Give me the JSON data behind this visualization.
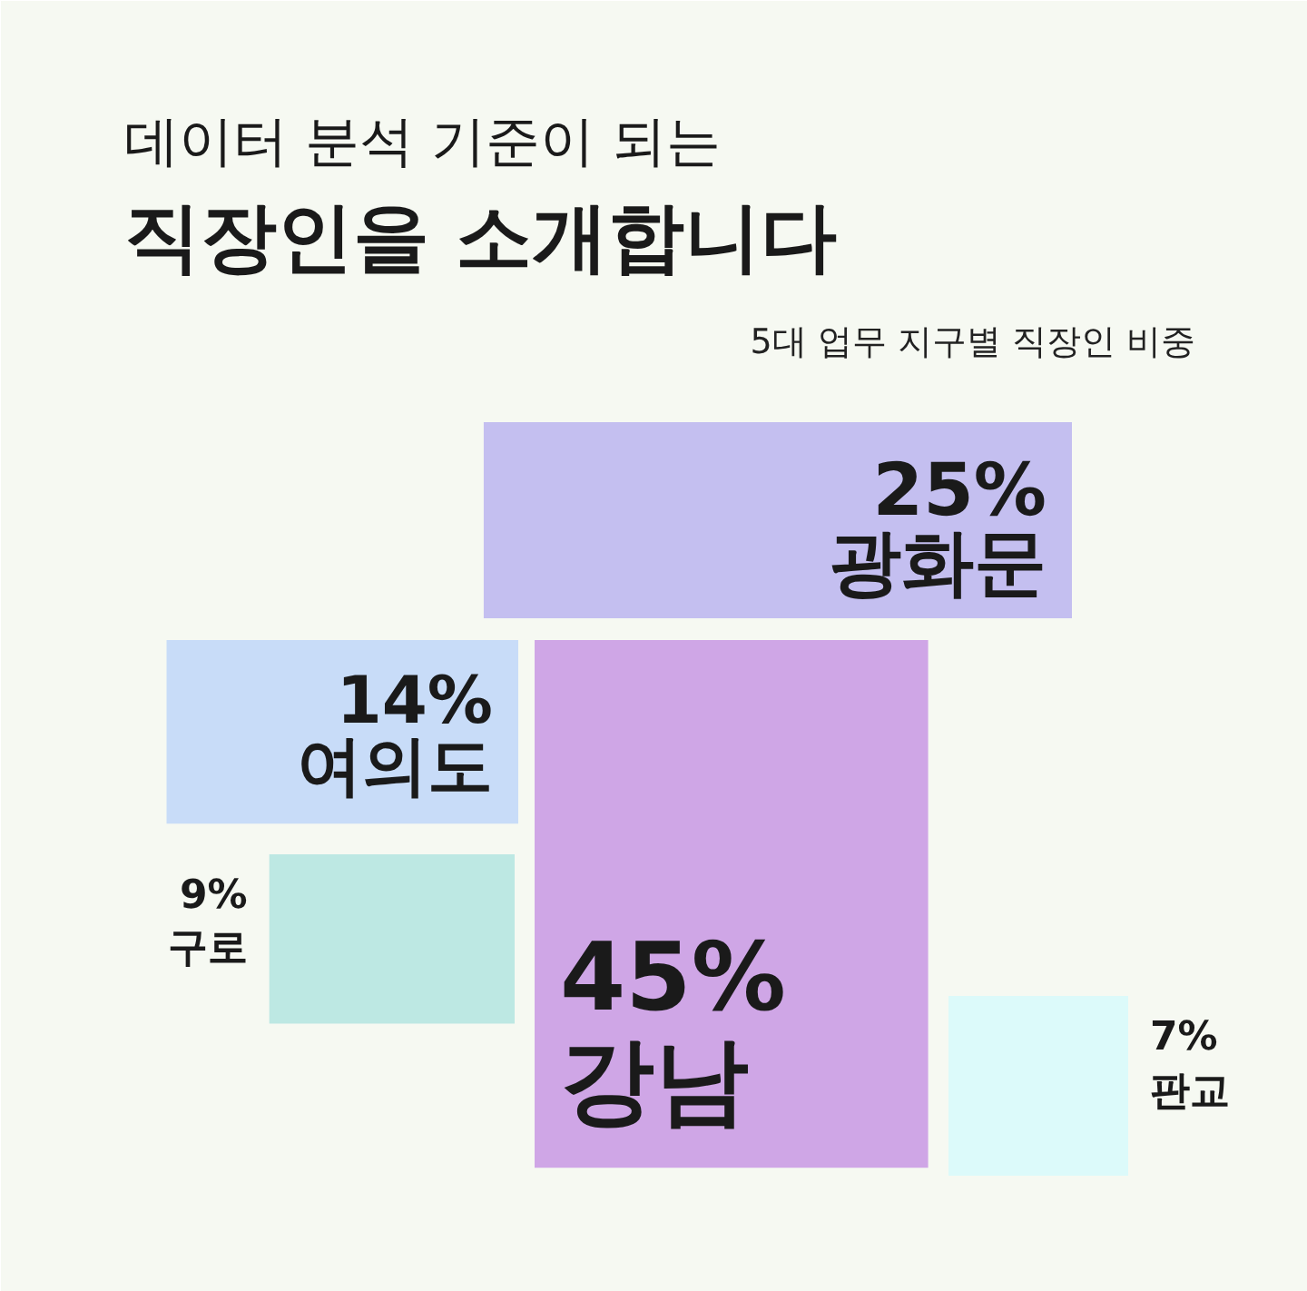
{
  "chart_data": {
    "type": "other",
    "title": "데이터 분석 기준이 되는\n직장인을 소개합니다",
    "subtitle": "5대 업무 지구별 직장인 비중",
    "categories": [
      "광화문",
      "여의도",
      "구로",
      "강남",
      "판교"
    ],
    "values": [
      25,
      14,
      9,
      45,
      7
    ],
    "value_labels": [
      "25%",
      "14%",
      "9%",
      "45%",
      "7%"
    ],
    "colors": [
      "#c4bff0",
      "#c8dcf8",
      "#bde8e3",
      "#cfa6e6",
      "#dcfafa"
    ]
  }
}
